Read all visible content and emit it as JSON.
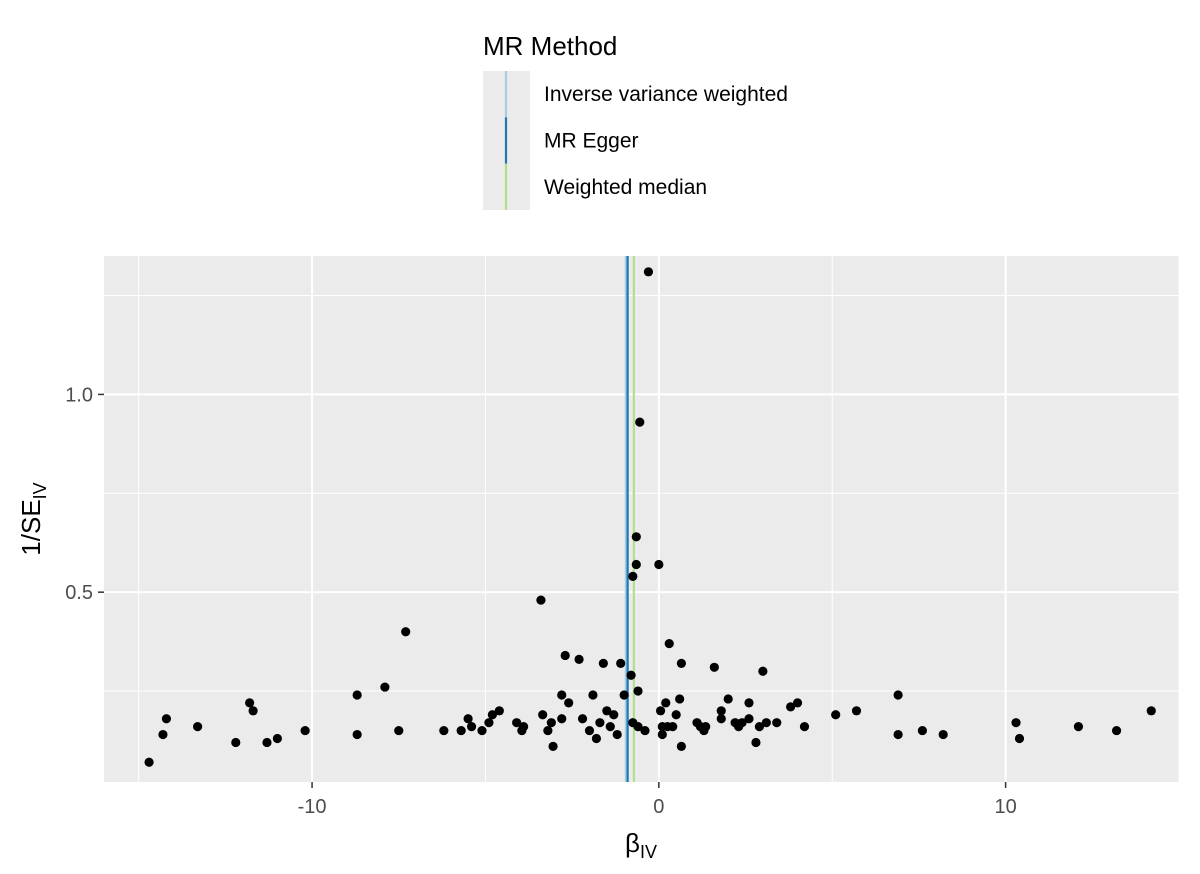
{
  "chart_data": {
    "type": "scatter",
    "xlabel": "β",
    "xlabel_sub": "IV",
    "ylabel": "1/SE",
    "ylabel_sub": "IV",
    "xlim": [
      -16,
      15
    ],
    "ylim": [
      0.02,
      1.35
    ],
    "x_ticks": [
      -10,
      0,
      10
    ],
    "x_tick_labels": [
      "-10",
      "0",
      "10"
    ],
    "y_ticks": [
      0.5,
      1.0
    ],
    "y_tick_labels": [
      "0.5",
      "1.0"
    ],
    "grid": true,
    "legend": {
      "title": "MR Method",
      "placement": "top",
      "entries": [
        {
          "name": "Inverse variance weighted",
          "color": "#a6cee3"
        },
        {
          "name": "MR Egger",
          "color": "#1f78b4"
        },
        {
          "name": "Weighted median",
          "color": "#b2df8a"
        }
      ]
    },
    "lines": [
      {
        "name": "Inverse variance weighted",
        "type": "vline",
        "x": -0.95,
        "color": "#a6cee3"
      },
      {
        "name": "MR Egger",
        "type": "vline",
        "x": -0.9,
        "color": "#1f78b4"
      },
      {
        "name": "Weighted median",
        "type": "vline",
        "x": -0.72,
        "color": "#b2df8a"
      }
    ],
    "points_color": "#000000",
    "points": [
      [
        -14.7,
        0.07
      ],
      [
        -14.3,
        0.14
      ],
      [
        -14.2,
        0.18
      ],
      [
        -13.3,
        0.16
      ],
      [
        -12.2,
        0.12
      ],
      [
        -11.8,
        0.22
      ],
      [
        -11.7,
        0.2
      ],
      [
        -11.3,
        0.12
      ],
      [
        -11.0,
        0.13
      ],
      [
        -10.2,
        0.15
      ],
      [
        -8.7,
        0.24
      ],
      [
        -8.7,
        0.14
      ],
      [
        -7.9,
        0.26
      ],
      [
        -7.5,
        0.15
      ],
      [
        -7.3,
        0.4
      ],
      [
        -6.2,
        0.15
      ],
      [
        -5.7,
        0.15
      ],
      [
        -5.5,
        0.18
      ],
      [
        -5.4,
        0.16
      ],
      [
        -5.1,
        0.15
      ],
      [
        -4.9,
        0.17
      ],
      [
        -4.8,
        0.19
      ],
      [
        -4.6,
        0.2
      ],
      [
        -4.1,
        0.17
      ],
      [
        -3.95,
        0.15
      ],
      [
        -3.9,
        0.16
      ],
      [
        -3.4,
        0.48
      ],
      [
        -3.35,
        0.19
      ],
      [
        -3.2,
        0.15
      ],
      [
        -3.1,
        0.17
      ],
      [
        -3.05,
        0.11
      ],
      [
        -2.8,
        0.18
      ],
      [
        -2.8,
        0.24
      ],
      [
        -2.7,
        0.34
      ],
      [
        -2.6,
        0.22
      ],
      [
        -2.3,
        0.33
      ],
      [
        -2.2,
        0.18
      ],
      [
        -2.0,
        0.15
      ],
      [
        -1.9,
        0.24
      ],
      [
        -1.8,
        0.13
      ],
      [
        -1.7,
        0.17
      ],
      [
        -1.6,
        0.32
      ],
      [
        -1.5,
        0.2
      ],
      [
        -1.4,
        0.16
      ],
      [
        -1.3,
        0.19
      ],
      [
        -1.2,
        0.14
      ],
      [
        -1.1,
        0.32
      ],
      [
        -1.0,
        0.24
      ],
      [
        -0.8,
        0.29
      ],
      [
        -0.75,
        0.17
      ],
      [
        -0.75,
        0.54
      ],
      [
        -0.65,
        0.64
      ],
      [
        -0.65,
        0.57
      ],
      [
        -0.6,
        0.16
      ],
      [
        -0.6,
        0.25
      ],
      [
        -0.55,
        0.93
      ],
      [
        -0.4,
        0.15
      ],
      [
        -0.3,
        1.31
      ],
      [
        0.0,
        0.57
      ],
      [
        0.05,
        0.2
      ],
      [
        0.1,
        0.16
      ],
      [
        0.1,
        0.14
      ],
      [
        0.2,
        0.22
      ],
      [
        0.25,
        0.16
      ],
      [
        0.3,
        0.37
      ],
      [
        0.4,
        0.16
      ],
      [
        0.5,
        0.19
      ],
      [
        0.6,
        0.23
      ],
      [
        0.65,
        0.11
      ],
      [
        0.65,
        0.32
      ],
      [
        1.1,
        0.17
      ],
      [
        1.2,
        0.16
      ],
      [
        1.3,
        0.15
      ],
      [
        1.35,
        0.16
      ],
      [
        1.6,
        0.31
      ],
      [
        1.8,
        0.2
      ],
      [
        1.8,
        0.18
      ],
      [
        2.0,
        0.23
      ],
      [
        2.2,
        0.17
      ],
      [
        2.3,
        0.16
      ],
      [
        2.4,
        0.17
      ],
      [
        2.6,
        0.18
      ],
      [
        2.6,
        0.22
      ],
      [
        2.8,
        0.12
      ],
      [
        2.9,
        0.16
      ],
      [
        3.0,
        0.3
      ],
      [
        3.1,
        0.17
      ],
      [
        3.4,
        0.17
      ],
      [
        3.8,
        0.21
      ],
      [
        4.0,
        0.22
      ],
      [
        4.2,
        0.16
      ],
      [
        5.1,
        0.19
      ],
      [
        5.7,
        0.2
      ],
      [
        6.9,
        0.24
      ],
      [
        6.9,
        0.14
      ],
      [
        7.6,
        0.15
      ],
      [
        8.2,
        0.14
      ],
      [
        10.3,
        0.17
      ],
      [
        10.4,
        0.13
      ],
      [
        12.1,
        0.16
      ],
      [
        13.2,
        0.15
      ],
      [
        14.2,
        0.2
      ]
    ]
  }
}
